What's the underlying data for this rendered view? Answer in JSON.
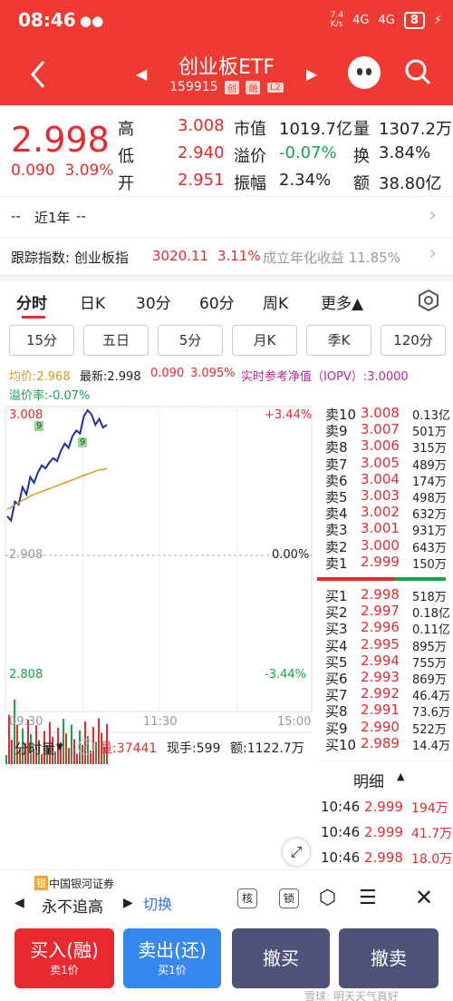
{
  "status": {
    "time": "08:46",
    "net_speed": "7.4\nK/s",
    "sig1": "4G",
    "sig2": "4G",
    "battery": "8"
  },
  "header": {
    "title": "创业板ETF",
    "code": "159915",
    "tags": [
      "创",
      "融",
      "L2"
    ]
  },
  "quote": {
    "price": "2.998",
    "change": "0.090",
    "change_pct": "3.09%",
    "rows": [
      [
        {
          "l": "高",
          "v": "3.008",
          "c": "red"
        },
        {
          "l": "市值",
          "v": "1019.7亿",
          "c": "dark"
        },
        {
          "l": "量",
          "v": "1307.2万",
          "c": "dark"
        }
      ],
      [
        {
          "l": "低",
          "v": "2.940",
          "c": "red"
        },
        {
          "l": "溢价",
          "v": "-0.07%",
          "c": "green"
        },
        {
          "l": "换",
          "v": "3.84%",
          "c": "dark"
        }
      ],
      [
        {
          "l": "开",
          "v": "2.951",
          "c": "red"
        },
        {
          "l": "振幅",
          "v": "2.34%",
          "c": "dark"
        },
        {
          "l": "额",
          "v": "38.80亿",
          "c": "dark"
        }
      ]
    ]
  },
  "info": {
    "range_left": "--",
    "range_label": "近1年",
    "range_right": "--",
    "track_label": "跟踪指数: 创业板指",
    "track_value": "3020.11",
    "track_pct": "3.11%",
    "track_extra": "成立年化收益 11.85%"
  },
  "tabs": [
    "分时",
    "日K",
    "30分",
    "60分",
    "周K",
    "更多▲"
  ],
  "periods": [
    "15分",
    "五日",
    "5分",
    "月K",
    "季K",
    "120分"
  ],
  "chart_header": {
    "avg": "均价:2.968",
    "latest_label": "最新:2.998",
    "latest_chg": "0.090",
    "latest_pct": "3.095%",
    "iopv": "实时参考净值（IOPV）:3.0000",
    "premium": "溢价率:-0.07%"
  },
  "chart": {
    "price_top": "3.008",
    "pct_top": "+3.44%",
    "price_mid": "2.908",
    "pct_mid": "0.00%",
    "price_bot": "2.808",
    "pct_bot": "-3.44%",
    "times": [
      "09:30",
      "11:30",
      "15:00"
    ],
    "vol_title": "分时量",
    "vol_label": "量:37441",
    "cur_hand": "现手:599",
    "amount": "额:1122.7万",
    "marker": "9"
  },
  "chart_data": {
    "type": "line",
    "x_range": [
      "09:30",
      "15:00"
    ],
    "ylim": [
      2.808,
      3.008
    ],
    "series": [
      {
        "values": [
          2.935,
          2.932,
          2.945,
          2.943,
          2.955,
          2.95,
          2.962,
          2.958,
          2.965,
          2.97,
          2.968,
          2.972,
          2.975,
          2.973,
          2.98,
          2.985,
          2.982,
          2.99,
          2.994,
          2.992,
          3.004,
          3.008,
          3.005,
          2.998,
          3.002,
          2.996,
          2.998
        ]
      },
      {
        "values": [
          2.94,
          2.941,
          2.943,
          2.944,
          2.946,
          2.947,
          2.949,
          2.95,
          2.951,
          2.952,
          2.953,
          2.954,
          2.955,
          2.956,
          2.957,
          2.958,
          2.959,
          2.96,
          2.961,
          2.962,
          2.963,
          2.964,
          2.965,
          2.966,
          2.967,
          2.967,
          2.968
        ]
      }
    ]
  },
  "order_book": {
    "asks": [
      [
        "卖10",
        "3.008",
        "0.13亿"
      ],
      [
        "卖9",
        "3.007",
        "501万"
      ],
      [
        "卖8",
        "3.006",
        "315万"
      ],
      [
        "卖7",
        "3.005",
        "489万"
      ],
      [
        "卖6",
        "3.004",
        "174万"
      ],
      [
        "卖5",
        "3.003",
        "498万"
      ],
      [
        "卖4",
        "3.002",
        "632万"
      ],
      [
        "卖3",
        "3.001",
        "931万"
      ],
      [
        "卖2",
        "3.000",
        "643万"
      ],
      [
        "卖1",
        "2.999",
        "150万"
      ]
    ],
    "bids": [
      [
        "买1",
        "2.998",
        "518万"
      ],
      [
        "买2",
        "2.997",
        "0.18亿"
      ],
      [
        "买3",
        "2.996",
        "0.11亿"
      ],
      [
        "买4",
        "2.995",
        "895万"
      ],
      [
        "买5",
        "2.994",
        "755万"
      ],
      [
        "买6",
        "2.993",
        "869万"
      ],
      [
        "买7",
        "2.992",
        "46.4万"
      ],
      [
        "买8",
        "2.991",
        "73.6万"
      ],
      [
        "买9",
        "2.990",
        "522万"
      ],
      [
        "买10",
        "2.989",
        "14.4万"
      ]
    ],
    "detail_label": "明细",
    "ticks": [
      [
        "10:46",
        "2.999",
        "194万"
      ],
      [
        "10:46",
        "2.999",
        "41.7万"
      ],
      [
        "10:46",
        "2.998",
        "18.0万"
      ]
    ]
  },
  "bottom": {
    "broker": "中国银河证券",
    "slogan": "永不追高",
    "switch": "切换",
    "buy": "买入(融)",
    "buy_sub": "卖1价",
    "sell": "卖出(还)",
    "sell_sub": "买1价",
    "cancel_buy": "撤买",
    "cancel_sell": "撤卖",
    "watermark": "雪球: 明天天气真好"
  }
}
